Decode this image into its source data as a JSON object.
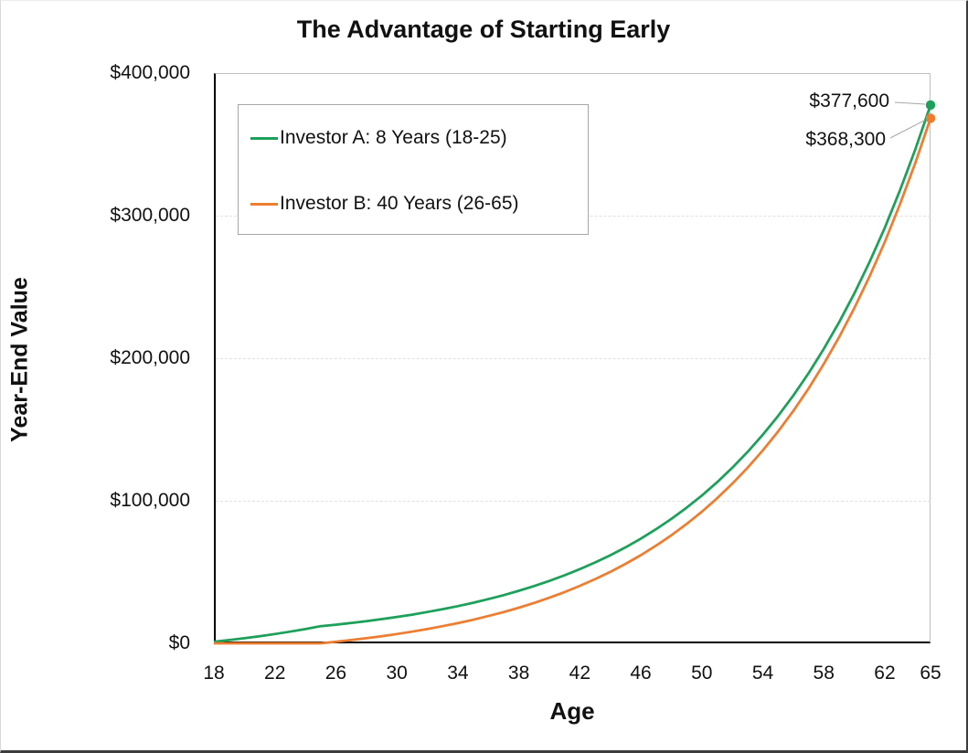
{
  "title": "The Advantage of Starting Early",
  "chart_data": {
    "type": "line",
    "title": "The Advantage of Starting Early",
    "xlabel": "Age",
    "ylabel": "Year-End Value",
    "xlim": [
      18,
      65
    ],
    "ylim": [
      0,
      400000
    ],
    "grid": {
      "horizontal_values": [
        100000,
        200000,
        300000
      ],
      "style": "dashed"
    },
    "legend_position": "top-left-inside",
    "x_ticks": [
      18,
      22,
      26,
      30,
      34,
      38,
      42,
      46,
      50,
      54,
      58,
      62,
      65
    ],
    "y_ticks": [
      {
        "value": 0,
        "label": "$0"
      },
      {
        "value": 100000,
        "label": "$100,000"
      },
      {
        "value": 200000,
        "label": "$200,000"
      },
      {
        "value": 300000,
        "label": "$300,000"
      },
      {
        "value": 400000,
        "label": "$400,000"
      }
    ],
    "x": [
      18,
      19,
      20,
      21,
      22,
      23,
      24,
      25,
      26,
      27,
      28,
      29,
      30,
      31,
      32,
      33,
      34,
      35,
      36,
      37,
      38,
      39,
      40,
      41,
      42,
      43,
      44,
      45,
      46,
      47,
      48,
      49,
      50,
      51,
      52,
      53,
      54,
      55,
      56,
      57,
      58,
      59,
      60,
      61,
      62,
      63,
      64,
      65
    ],
    "series": [
      {
        "name": "Investor A: 8 Years (18-25)",
        "color": "#1ca05a",
        "end_marker": true,
        "values": [
          1090,
          2278,
          3573,
          4985,
          6523,
          8200,
          10028,
          12021,
          13103,
          14282,
          15568,
          16969,
          18496,
          20160,
          21975,
          23953,
          26108,
          28458,
          31019,
          33811,
          36854,
          40171,
          43786,
          47727,
          52023,
          56705,
          61808,
          67371,
          73434,
          80043,
          87247,
          95099,
          103658,
          112988,
          123156,
          134241,
          146322,
          159491,
          173845,
          189491,
          206546,
          225135,
          245397,
          267483,
          291556,
          317796,
          346398,
          377574
        ]
      },
      {
        "name": "Investor B: 40 Years (26-65)",
        "color": "#ed7d31",
        "end_marker": true,
        "values": [
          0,
          0,
          0,
          0,
          0,
          0,
          0,
          0,
          1090,
          2278,
          3573,
          4985,
          6523,
          8200,
          10028,
          12021,
          14193,
          16560,
          19141,
          21953,
          25019,
          28361,
          32003,
          35974,
          40301,
          45018,
          50160,
          55765,
          61873,
          68532,
          75790,
          83701,
          92324,
          101723,
          111968,
          123135,
          135308,
          148575,
          163037,
          178800,
          195982,
          214711,
          235125,
          257376,
          281630,
          308066,
          336882,
          368292
        ]
      }
    ],
    "annotations": [
      {
        "label": "$377,600",
        "series": "Investor A: 8 Years (18-25)",
        "x": 65,
        "value": 377600
      },
      {
        "label": "$368,300",
        "series": "Investor B: 40 Years (26-65)",
        "x": 65,
        "value": 368300
      }
    ]
  },
  "colors": {
    "series_a_green": "#1ca05a",
    "series_b_orange": "#ed7d31",
    "axis_line": "#000000",
    "plot_border": "#bfbfbf",
    "gridline": "#e0e0e0",
    "leader_line": "#a6a6a6",
    "legend_border": "#a6a6a6",
    "text": "#111111"
  }
}
